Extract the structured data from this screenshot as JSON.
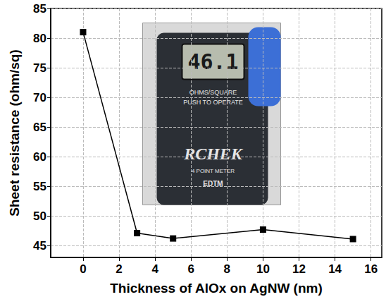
{
  "chart_data": {
    "type": "line",
    "x": [
      0,
      3,
      5,
      10,
      15
    ],
    "values": [
      81,
      47.1,
      46.2,
      47.7,
      46.1
    ],
    "color": "#000000",
    "marker": "square",
    "line_style": "solid",
    "xlabel": "Thickness of AlOx on AgNW (nm)",
    "ylabel": "Sheet resistance (ohm/sq)",
    "xlim": [
      -1.8,
      16.6
    ],
    "ylim": [
      43,
      85
    ],
    "xticks": [
      0,
      2,
      4,
      6,
      8,
      10,
      12,
      14,
      16
    ],
    "yticks": [
      45,
      50,
      55,
      60,
      65,
      70,
      75,
      80,
      85
    ],
    "grid": true,
    "annotations": [
      "46.1",
      "OHMS/SQUARE",
      "PUSH TO OPERATE",
      "RCHEK",
      "4 POINT METER",
      "EDTM"
    ]
  }
}
